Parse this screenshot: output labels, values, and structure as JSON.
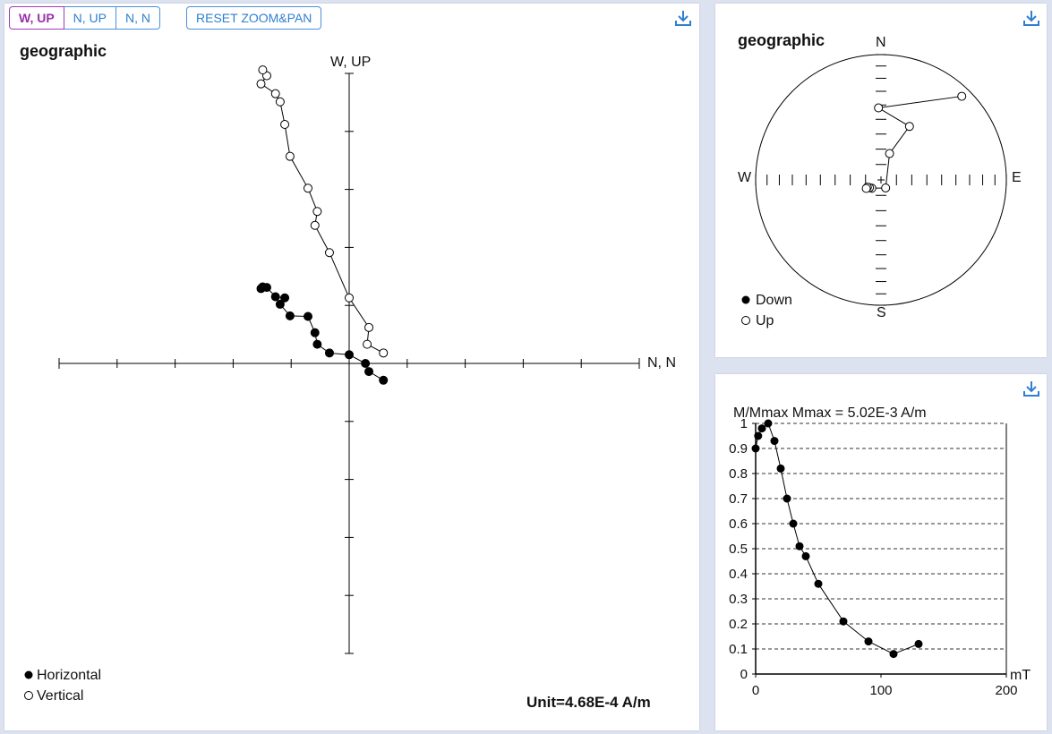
{
  "toolbar": {
    "buttons": [
      {
        "label": "W, UP",
        "active": true
      },
      {
        "label": "N, UP",
        "active": false
      },
      {
        "label": "N, N",
        "active": false
      }
    ],
    "reset_label": "RESET ZOOM&PAN"
  },
  "icons": {
    "download": "download-icon"
  },
  "colors": {
    "accent": "#2e7fd0",
    "active": "#9b2fae"
  },
  "chart_data": [
    {
      "type": "scatter",
      "plot": "zijderveld",
      "title": "geographic",
      "xlabel": "N, N",
      "ylabel": "W, UP",
      "unit_label": "Unit=4.68E-4 A/m",
      "legend": [
        "Horizontal",
        "Vertical"
      ],
      "legend_position": "bottom-left",
      "xlim": [
        -5,
        5
      ],
      "ylim": [
        -5,
        5
      ],
      "series": [
        {
          "name": "Horizontal",
          "marker": "filled",
          "points": [
            [
              -1.49,
              1.32
            ],
            [
              -1.52,
              1.29
            ],
            [
              -1.42,
              1.31
            ],
            [
              -1.27,
              1.15
            ],
            [
              -1.11,
              1.13
            ],
            [
              -1.19,
              1.02
            ],
            [
              -1.02,
              0.82
            ],
            [
              -0.71,
              0.81
            ],
            [
              -0.59,
              0.53
            ],
            [
              -0.55,
              0.33
            ],
            [
              -0.34,
              0.18
            ],
            [
              0.0,
              0.15
            ],
            [
              0.28,
              0.0
            ],
            [
              0.34,
              -0.14
            ],
            [
              0.59,
              -0.29
            ]
          ]
        },
        {
          "name": "Vertical",
          "marker": "open",
          "points": [
            [
              0.59,
              0.18
            ],
            [
              0.31,
              0.33
            ],
            [
              0.34,
              0.62
            ],
            [
              0.0,
              1.13
            ],
            [
              -0.34,
              1.91
            ],
            [
              -0.59,
              2.38
            ],
            [
              -0.55,
              2.62
            ],
            [
              -0.71,
              3.02
            ],
            [
              -1.02,
              3.57
            ],
            [
              -1.11,
              4.12
            ],
            [
              -1.19,
              4.51
            ],
            [
              -1.27,
              4.65
            ],
            [
              -1.52,
              4.82
            ],
            [
              -1.42,
              4.96
            ],
            [
              -1.49,
              5.06
            ]
          ]
        }
      ]
    },
    {
      "type": "scatter",
      "plot": "stereonet",
      "title": "geographic",
      "directions": [
        "N",
        "E",
        "S",
        "W"
      ],
      "legend": [
        "Down",
        "Up"
      ],
      "legend_position": "bottom-left",
      "points": [
        {
          "dec": 44,
          "inc": 8,
          "hemisphere": "up"
        },
        {
          "dec": 358,
          "inc": 42,
          "hemisphere": "up"
        },
        {
          "dec": 28,
          "inc": 50,
          "hemisphere": "up"
        },
        {
          "dec": 18,
          "inc": 72,
          "hemisphere": "up"
        },
        {
          "dec": 150,
          "inc": 84,
          "hemisphere": "up"
        },
        {
          "dec": 228,
          "inc": 82,
          "hemisphere": "up"
        },
        {
          "dec": 236,
          "inc": 81,
          "hemisphere": "up"
        },
        {
          "dec": 242,
          "inc": 80,
          "hemisphere": "up"
        },
        {
          "dec": 240,
          "inc": 79,
          "hemisphere": "up"
        }
      ]
    },
    {
      "type": "line",
      "plot": "demagnetization",
      "title": "M/Mmax  Mmax = 5.02E-3 A/m",
      "xlabel": "mT",
      "xlim": [
        0,
        200
      ],
      "ylim": [
        0,
        1
      ],
      "xticks": [
        0,
        100,
        200
      ],
      "yticks": [
        0,
        0.1,
        0.2,
        0.3,
        0.4,
        0.5,
        0.6,
        0.7,
        0.8,
        0.9,
        1
      ],
      "grid": "dashed-horizontal",
      "x": [
        0,
        2,
        5,
        10,
        15,
        20,
        25,
        30,
        35,
        40,
        50,
        70,
        90,
        110,
        130
      ],
      "y": [
        0.9,
        0.95,
        0.98,
        1.0,
        0.93,
        0.82,
        0.7,
        0.6,
        0.51,
        0.47,
        0.36,
        0.21,
        0.13,
        0.08,
        0.12
      ]
    }
  ]
}
